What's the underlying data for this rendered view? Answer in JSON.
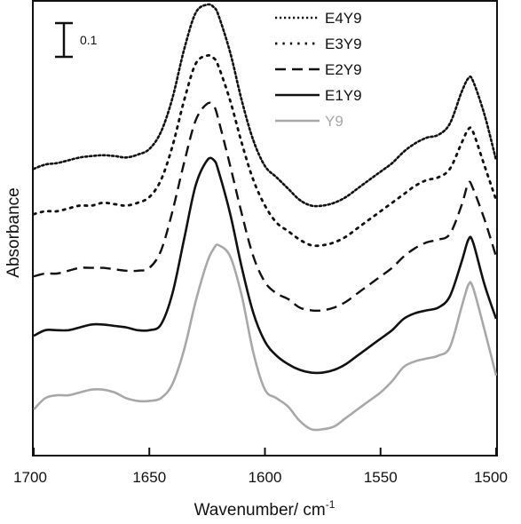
{
  "chart_data": {
    "type": "line",
    "title": "",
    "xlabel": "Wavenumber/ cm-1",
    "ylabel": "Absorbance",
    "xlim": [
      1700,
      1500
    ],
    "xaxis_reversed": true,
    "xticks": [
      1700,
      1650,
      1600,
      1550,
      1500
    ],
    "xtick_labels": [
      "1700",
      "1650",
      "1600",
      "1550",
      "1500"
    ],
    "yticks_shown": false,
    "grid": false,
    "legend_position": "top-right",
    "scale_bar": {
      "label": "0.1",
      "value": 0.1
    },
    "ylim": [
      0,
      1.6
    ],
    "x": [
      1700,
      1695,
      1690,
      1685,
      1680,
      1675,
      1670,
      1665,
      1660,
      1655,
      1650,
      1645,
      1640,
      1635,
      1630,
      1625,
      1622,
      1620,
      1615,
      1610,
      1605,
      1600,
      1595,
      1590,
      1585,
      1580,
      1575,
      1570,
      1565,
      1560,
      1555,
      1550,
      1545,
      1540,
      1535,
      1530,
      1525,
      1520,
      1515,
      1512,
      1510,
      1505,
      1500
    ],
    "series": [
      {
        "name": "E4Y9",
        "style": "dotted",
        "color": "#111111",
        "values": [
          1.01,
          1.025,
          1.03,
          1.04,
          1.05,
          1.055,
          1.058,
          1.055,
          1.05,
          1.06,
          1.08,
          1.14,
          1.26,
          1.43,
          1.56,
          1.59,
          1.58,
          1.55,
          1.42,
          1.25,
          1.11,
          1.02,
          0.98,
          0.94,
          0.9,
          0.88,
          0.88,
          0.89,
          0.91,
          0.94,
          0.97,
          1.0,
          1.03,
          1.07,
          1.1,
          1.12,
          1.13,
          1.17,
          1.28,
          1.33,
          1.32,
          1.2,
          1.04
        ]
      },
      {
        "name": "E3Y9",
        "style": "dotted-sparse",
        "color": "#111111",
        "values": [
          0.85,
          0.86,
          0.86,
          0.87,
          0.88,
          0.88,
          0.89,
          0.885,
          0.88,
          0.89,
          0.91,
          0.97,
          1.09,
          1.25,
          1.38,
          1.41,
          1.4,
          1.37,
          1.25,
          1.1,
          0.97,
          0.88,
          0.82,
          0.79,
          0.76,
          0.74,
          0.74,
          0.75,
          0.77,
          0.8,
          0.83,
          0.86,
          0.89,
          0.92,
          0.95,
          0.97,
          0.98,
          1.01,
          1.1,
          1.15,
          1.14,
          1.02,
          0.9
        ]
      },
      {
        "name": "E2Y9",
        "style": "dashed",
        "color": "#111111",
        "values": [
          0.63,
          0.64,
          0.64,
          0.65,
          0.66,
          0.66,
          0.66,
          0.655,
          0.65,
          0.65,
          0.66,
          0.72,
          0.86,
          1.03,
          1.18,
          1.24,
          1.23,
          1.18,
          1.02,
          0.85,
          0.7,
          0.61,
          0.57,
          0.55,
          0.52,
          0.51,
          0.51,
          0.52,
          0.54,
          0.57,
          0.6,
          0.63,
          0.66,
          0.7,
          0.73,
          0.75,
          0.76,
          0.78,
          0.88,
          0.96,
          0.94,
          0.83,
          0.7
        ]
      },
      {
        "name": "E1Y9",
        "style": "solid",
        "color": "#111111",
        "values": [
          0.42,
          0.44,
          0.44,
          0.44,
          0.45,
          0.46,
          0.46,
          0.455,
          0.45,
          0.44,
          0.44,
          0.46,
          0.57,
          0.76,
          0.95,
          1.04,
          1.04,
          1.0,
          0.85,
          0.66,
          0.5,
          0.4,
          0.35,
          0.32,
          0.3,
          0.29,
          0.29,
          0.3,
          0.32,
          0.35,
          0.38,
          0.41,
          0.44,
          0.48,
          0.5,
          0.51,
          0.52,
          0.56,
          0.68,
          0.76,
          0.75,
          0.6,
          0.48
        ]
      },
      {
        "name": "Y9",
        "style": "solid",
        "color": "#a8a8a8",
        "values": [
          0.16,
          0.2,
          0.21,
          0.21,
          0.22,
          0.23,
          0.23,
          0.22,
          0.2,
          0.19,
          0.19,
          0.2,
          0.25,
          0.37,
          0.54,
          0.68,
          0.73,
          0.74,
          0.7,
          0.56,
          0.36,
          0.23,
          0.2,
          0.17,
          0.12,
          0.09,
          0.09,
          0.1,
          0.13,
          0.16,
          0.19,
          0.22,
          0.26,
          0.31,
          0.33,
          0.34,
          0.35,
          0.38,
          0.52,
          0.6,
          0.59,
          0.44,
          0.28
        ]
      }
    ]
  }
}
